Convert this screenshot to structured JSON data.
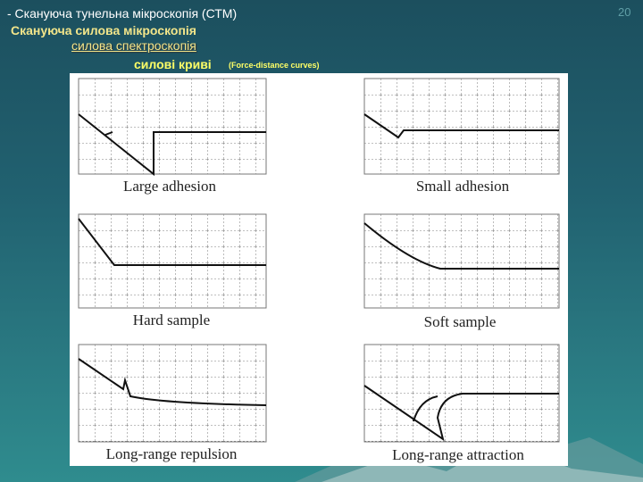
{
  "header": {
    "line1": "- Скануюча тунельна мікроскопія (СТМ)",
    "line2": "Скануюча силова мікроскопія",
    "line3": "силова спектроскопія",
    "line4": "силові криві",
    "line4_note": "(Force-distance curves)",
    "page_number": "20"
  },
  "panels": [
    {
      "caption": "Large adhesion"
    },
    {
      "caption": "Small adhesion"
    },
    {
      "caption": "Hard sample"
    },
    {
      "caption": "Soft sample"
    },
    {
      "caption": "Long-range repulsion"
    },
    {
      "caption": "Long-range attraction"
    }
  ]
}
